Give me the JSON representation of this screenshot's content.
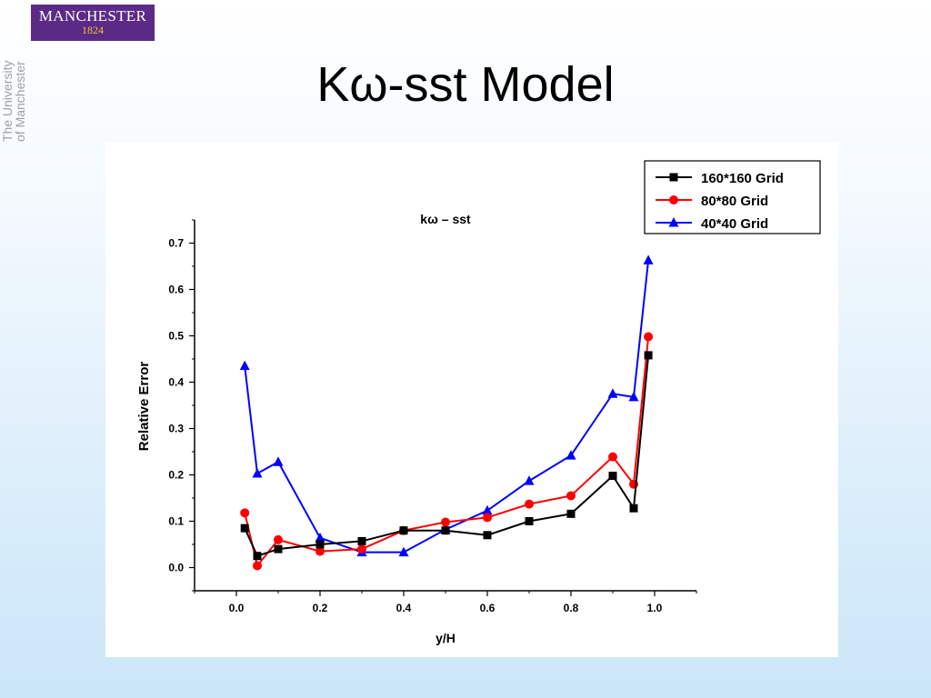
{
  "branding": {
    "logo_main": "MANCHESTER",
    "logo_year": "1824",
    "vertical_line1": "The University",
    "vertical_line2": "of Manchester"
  },
  "slide": {
    "title": "Kω-sst Model"
  },
  "chart_data": {
    "type": "line",
    "title": "kω – sst",
    "xlabel": "y/H",
    "ylabel": "Relative Error",
    "xlim": [
      -0.1,
      1.1
    ],
    "ylim": [
      -0.05,
      0.75
    ],
    "x_ticks": [
      "0.0",
      "0.2",
      "0.4",
      "0.6",
      "0.8",
      "1.0"
    ],
    "y_ticks": [
      "0.0",
      "0.1",
      "0.2",
      "0.3",
      "0.4",
      "0.5",
      "0.6",
      "0.7"
    ],
    "grid": false,
    "legend_position": "top-right",
    "series": [
      {
        "name": "160*160 Grid",
        "color": "#000000",
        "marker": "square",
        "x": [
          0.02,
          0.05,
          0.1,
          0.2,
          0.3,
          0.4,
          0.5,
          0.6,
          0.7,
          0.8,
          0.9,
          0.95,
          0.985
        ],
        "y": [
          0.085,
          0.025,
          0.04,
          0.05,
          0.057,
          0.08,
          0.08,
          0.07,
          0.1,
          0.116,
          0.198,
          0.128,
          0.458
        ]
      },
      {
        "name": "80*80 Grid",
        "color": "#ff0000",
        "marker": "circle",
        "x": [
          0.02,
          0.05,
          0.1,
          0.2,
          0.3,
          0.4,
          0.5,
          0.6,
          0.7,
          0.8,
          0.9,
          0.95,
          0.985
        ],
        "y": [
          0.118,
          0.004,
          0.06,
          0.035,
          0.04,
          0.08,
          0.098,
          0.108,
          0.137,
          0.155,
          0.239,
          0.18,
          0.498
        ]
      },
      {
        "name": "40*40 Grid",
        "color": "#0000ff",
        "marker": "triangle",
        "x": [
          0.02,
          0.05,
          0.1,
          0.2,
          0.3,
          0.4,
          0.5,
          0.6,
          0.7,
          0.8,
          0.9,
          0.95,
          0.985
        ],
        "y": [
          0.435,
          0.203,
          0.228,
          0.064,
          0.033,
          0.033,
          0.082,
          0.123,
          0.187,
          0.242,
          0.375,
          0.368,
          0.663
        ]
      }
    ]
  }
}
